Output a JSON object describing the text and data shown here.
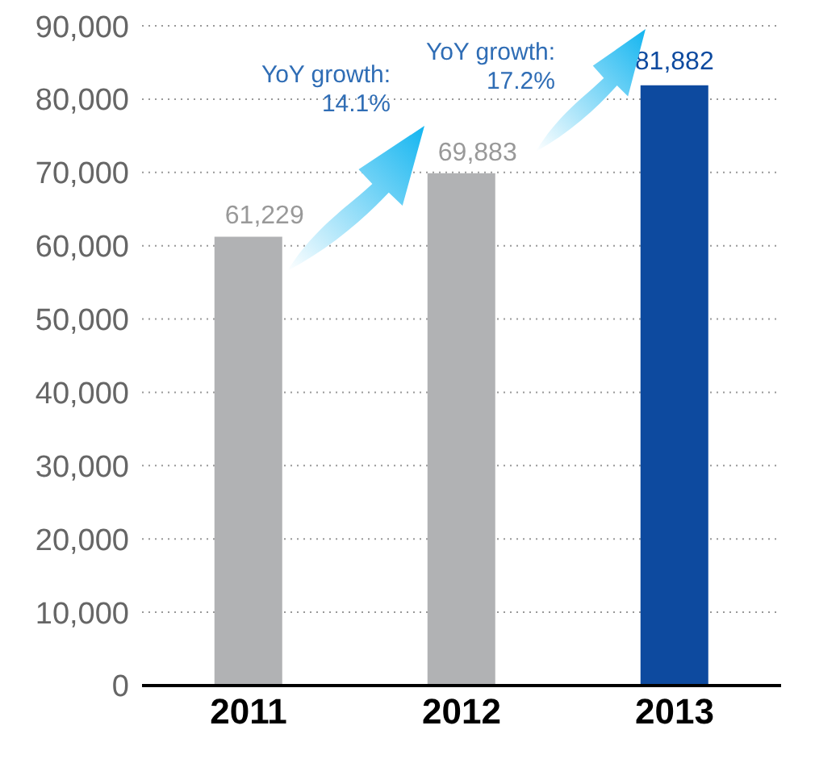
{
  "chart_data": {
    "type": "bar",
    "categories": [
      "2011",
      "2012",
      "2013"
    ],
    "values": [
      61229,
      69883,
      81882
    ],
    "colors": [
      "#b1b2b4",
      "#b1b2b4",
      "#0d4a9f"
    ],
    "value_labels": [
      "61,229",
      "69,883",
      "81,882"
    ],
    "ylim": [
      0,
      90000
    ],
    "yticks": [
      {
        "value": 0,
        "label": "0"
      },
      {
        "value": 10000,
        "label": "10,000"
      },
      {
        "value": 20000,
        "label": "20,000"
      },
      {
        "value": 30000,
        "label": "30,000"
      },
      {
        "value": 40000,
        "label": "40,000"
      },
      {
        "value": 50000,
        "label": "50,000"
      },
      {
        "value": 60000,
        "label": "60,000"
      },
      {
        "value": 70000,
        "label": "70,000"
      },
      {
        "value": 80000,
        "label": "80,000"
      },
      {
        "value": 90000,
        "label": "90,000"
      }
    ],
    "grid": "y",
    "annotations": [
      "YoY growth: 14.1%",
      "YoY growth: 17.2%"
    ]
  }
}
